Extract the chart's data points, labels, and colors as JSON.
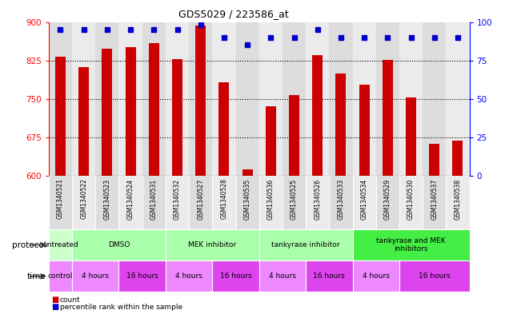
{
  "title": "GDS5029 / 223586_at",
  "samples": [
    "GSM1340521",
    "GSM1340522",
    "GSM1340523",
    "GSM1340524",
    "GSM1340531",
    "GSM1340532",
    "GSM1340527",
    "GSM1340528",
    "GSM1340535",
    "GSM1340536",
    "GSM1340525",
    "GSM1340526",
    "GSM1340533",
    "GSM1340534",
    "GSM1340529",
    "GSM1340530",
    "GSM1340537",
    "GSM1340538"
  ],
  "counts": [
    832,
    812,
    848,
    851,
    858,
    828,
    893,
    783,
    612,
    735,
    757,
    836,
    800,
    777,
    826,
    753,
    662,
    668
  ],
  "percentiles": [
    95,
    95,
    95,
    95,
    95,
    95,
    98,
    90,
    85,
    90,
    90,
    95,
    90,
    90,
    90,
    90,
    90,
    90
  ],
  "ylim_left": [
    600,
    900
  ],
  "ylim_right": [
    0,
    100
  ],
  "yticks_left": [
    600,
    675,
    750,
    825,
    900
  ],
  "yticks_right": [
    0,
    25,
    50,
    75,
    100
  ],
  "bar_color": "#cc0000",
  "dot_color": "#0000cc",
  "bg_colors_cols": [
    "#e0e0e0",
    "#e8e8e8",
    "#e0e0e0",
    "#e8e8e8",
    "#e0e0e0",
    "#e8e8e8",
    "#e0e0e0",
    "#e8e8e8",
    "#e0e0e0",
    "#e8e8e8",
    "#e0e0e0",
    "#e8e8e8",
    "#e0e0e0",
    "#e8e8e8",
    "#e0e0e0",
    "#e8e8e8",
    "#e0e0e0",
    "#e8e8e8"
  ],
  "protocol_groups": [
    {
      "label": "untreated",
      "start": 0,
      "end": 1,
      "color": "#ccffcc"
    },
    {
      "label": "DMSO",
      "start": 1,
      "end": 5,
      "color": "#aaffaa"
    },
    {
      "label": "MEK inhibitor",
      "start": 5,
      "end": 9,
      "color": "#aaffaa"
    },
    {
      "label": "tankyrase inhibitor",
      "start": 9,
      "end": 13,
      "color": "#aaffaa"
    },
    {
      "label": "tankyrase and MEK\ninhibitors",
      "start": 13,
      "end": 18,
      "color": "#44ee44"
    }
  ],
  "time_groups": [
    {
      "label": "control",
      "start": 0,
      "end": 1,
      "color": "#ee88ff"
    },
    {
      "label": "4 hours",
      "start": 1,
      "end": 3,
      "color": "#ee88ff"
    },
    {
      "label": "16 hours",
      "start": 3,
      "end": 5,
      "color": "#dd44ee"
    },
    {
      "label": "4 hours",
      "start": 5,
      "end": 7,
      "color": "#ee88ff"
    },
    {
      "label": "16 hours",
      "start": 7,
      "end": 9,
      "color": "#dd44ee"
    },
    {
      "label": "4 hours",
      "start": 9,
      "end": 11,
      "color": "#ee88ff"
    },
    {
      "label": "16 hours",
      "start": 11,
      "end": 13,
      "color": "#dd44ee"
    },
    {
      "label": "4 hours",
      "start": 13,
      "end": 15,
      "color": "#ee88ff"
    },
    {
      "label": "16 hours",
      "start": 15,
      "end": 18,
      "color": "#dd44ee"
    }
  ],
  "legend_items": [
    {
      "label": "count",
      "color": "#cc0000"
    },
    {
      "label": "percentile rank within the sample",
      "color": "#0000cc"
    }
  ]
}
